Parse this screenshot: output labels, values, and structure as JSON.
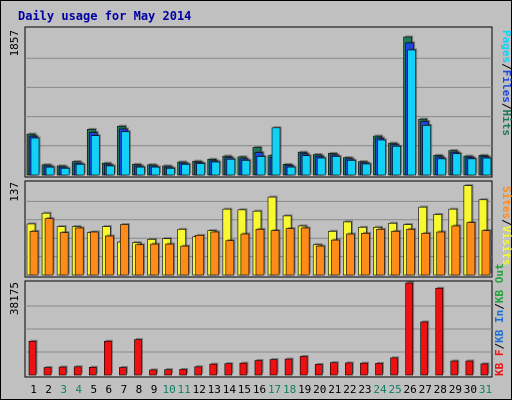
{
  "title": "Daily usage for May 2014",
  "colors": {
    "outer_bg": "#c0c0c0",
    "plot_bg": "#c0c0c0",
    "title": "#0000a0",
    "hits": "#1f7a5a",
    "files": "#1f47e0",
    "pages": "#11d1f7",
    "visits": "#f8f831",
    "sites": "#ff8c1a",
    "kbout": "#21a33c",
    "kbin": "#1f6fd0",
    "kbf": "#ee1111",
    "weekend_label": "#108060",
    "weekday_label": "#000000"
  },
  "panels": {
    "top": {
      "max_label": "1857"
    },
    "mid": {
      "max_label": "137"
    },
    "bot": {
      "max_label": "38175"
    }
  },
  "legends": {
    "top": [
      "Pages",
      "Files",
      "Hits"
    ],
    "mid": [
      "Sites",
      "Visits"
    ],
    "bot": [
      "KB F",
      "KB In",
      "KB Out"
    ]
  },
  "chart_data": [
    {
      "type": "bar",
      "title": "Daily usage for May 2014",
      "categories": [
        "1",
        "2",
        "3",
        "4",
        "5",
        "6",
        "7",
        "8",
        "9",
        "10",
        "11",
        "12",
        "13",
        "14",
        "15",
        "16",
        "17",
        "18",
        "19",
        "20",
        "21",
        "22",
        "23",
        "24",
        "25",
        "26",
        "27",
        "28",
        "29",
        "30",
        "31"
      ],
      "weekend_days": [
        "3",
        "4",
        "10",
        "11",
        "17",
        "18",
        "24",
        "25",
        "31"
      ],
      "ylim": [
        0,
        1857
      ],
      "series": [
        {
          "name": "Hits",
          "values": [
            520,
            130,
            115,
            170,
            580,
            150,
            620,
            135,
            130,
            115,
            165,
            175,
            200,
            240,
            230,
            350,
            245,
            135,
            290,
            260,
            275,
            220,
            170,
            495,
            405,
            1755,
            710,
            250,
            310,
            240,
            250
          ]
        },
        {
          "name": "Files",
          "values": [
            495,
            115,
            100,
            150,
            540,
            130,
            585,
            115,
            115,
            100,
            150,
            160,
            180,
            220,
            205,
            285,
            225,
            120,
            270,
            240,
            255,
            205,
            155,
            470,
            385,
            1680,
            680,
            230,
            290,
            225,
            235
          ]
        },
        {
          "name": "Pages",
          "values": [
            470,
            100,
            85,
            135,
            500,
            115,
            550,
            100,
            100,
            85,
            135,
            145,
            165,
            200,
            185,
            235,
            600,
            100,
            245,
            215,
            235,
            185,
            140,
            445,
            365,
            1590,
            630,
            205,
            270,
            205,
            215
          ]
        }
      ]
    },
    {
      "type": "bar",
      "ylim": [
        0,
        137
      ],
      "series": [
        {
          "name": "Visits",
          "values": [
            76,
            92,
            72,
            72,
            63,
            72,
            49,
            48,
            53,
            54,
            68,
            57,
            66,
            98,
            97,
            95,
            116,
            88,
            73,
            45,
            65,
            79,
            71,
            71,
            77,
            75,
            101,
            90,
            98,
            133,
            112
          ],
          "note_hidden": false
        },
        {
          "name": "Sites",
          "values": [
            65,
            84,
            63,
            70,
            64,
            58,
            75,
            45,
            46,
            46,
            43,
            59,
            64,
            51,
            61,
            68,
            66,
            69,
            70,
            43,
            52,
            61,
            62,
            68,
            65,
            68,
            62,
            64,
            73,
            78,
            66
          ]
        }
      ]
    },
    {
      "type": "bar",
      "ylim": [
        0,
        38175
      ],
      "series": [
        {
          "name": "KB F",
          "values": [
            14000,
            3100,
            3300,
            3400,
            3200,
            14000,
            3100,
            14700,
            2100,
            2200,
            2300,
            3400,
            4500,
            4700,
            4900,
            6000,
            6400,
            6600,
            7700,
            4400,
            5100,
            5000,
            4900,
            4800,
            7100,
            38175,
            22000,
            36000,
            5800,
            5800,
            4600
          ]
        }
      ]
    }
  ]
}
